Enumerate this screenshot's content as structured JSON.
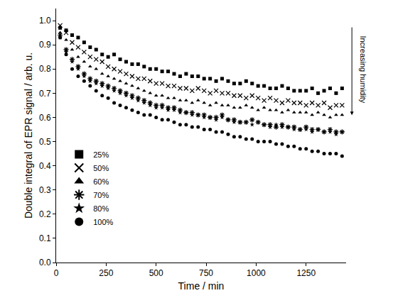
{
  "chart_data": {
    "type": "scatter",
    "x_label": "Time / min",
    "y_label": "Double integral of EPR signal / arb. u.",
    "annotation": "Increasing humidity",
    "xlim": [
      0,
      1450
    ],
    "xticks": [
      0,
      250,
      500,
      750,
      1000,
      1250
    ],
    "ylim": [
      0,
      1.05
    ],
    "yticks": [
      {
        "value": 0,
        "label": "0.0"
      },
      0.1,
      0.2,
      0.3,
      0.4,
      0.5,
      0.6,
      0.7,
      0.8,
      0.9,
      {
        "value": 1,
        "label": "1.0"
      }
    ],
    "grid": false,
    "legend": "lower left",
    "x": [
      20,
      50,
      80,
      110,
      140,
      170,
      200,
      230,
      260,
      290,
      320,
      350,
      380,
      410,
      440,
      470,
      500,
      530,
      560,
      590,
      620,
      650,
      680,
      710,
      740,
      770,
      800,
      830,
      860,
      890,
      920,
      950,
      980,
      1010,
      1040,
      1070,
      1100,
      1130,
      1160,
      1190,
      1220,
      1250,
      1280,
      1310,
      1340,
      1370,
      1400,
      1430
    ],
    "series": [
      {
        "name": "25%",
        "color": "#000000",
        "marker": "square",
        "values": [
          0.97,
          0.96,
          0.94,
          0.93,
          0.91,
          0.89,
          0.88,
          0.86,
          0.85,
          0.86,
          0.84,
          0.83,
          0.82,
          0.82,
          0.81,
          0.8,
          0.8,
          0.79,
          0.79,
          0.78,
          0.77,
          0.78,
          0.77,
          0.77,
          0.76,
          0.76,
          0.75,
          0.76,
          0.75,
          0.74,
          0.74,
          0.75,
          0.74,
          0.73,
          0.73,
          0.72,
          0.72,
          0.73,
          0.72,
          0.71,
          0.71,
          0.71,
          0.72,
          0.7,
          0.71,
          0.72,
          0.7,
          0.72
        ]
      },
      {
        "name": "50%",
        "color": "#000000",
        "marker": "x-thin-open",
        "values": [
          0.98,
          0.95,
          0.91,
          0.89,
          0.87,
          0.85,
          0.84,
          0.83,
          0.81,
          0.8,
          0.79,
          0.78,
          0.77,
          0.76,
          0.76,
          0.75,
          0.74,
          0.74,
          0.73,
          0.73,
          0.72,
          0.72,
          0.71,
          0.72,
          0.71,
          0.7,
          0.71,
          0.7,
          0.7,
          0.69,
          0.69,
          0.68,
          0.69,
          0.68,
          0.67,
          0.68,
          0.67,
          0.66,
          0.67,
          0.66,
          0.66,
          0.65,
          0.66,
          0.65,
          0.66,
          0.64,
          0.65,
          0.65
        ]
      },
      {
        "name": "60%",
        "color": "#000000",
        "marker": "triangle-up",
        "values": [
          0.95,
          0.92,
          0.88,
          0.85,
          0.83,
          0.81,
          0.8,
          0.78,
          0.77,
          0.76,
          0.75,
          0.74,
          0.73,
          0.72,
          0.71,
          0.7,
          0.69,
          0.69,
          0.68,
          0.68,
          0.67,
          0.67,
          0.66,
          0.67,
          0.66,
          0.65,
          0.66,
          0.65,
          0.65,
          0.64,
          0.64,
          0.65,
          0.64,
          0.63,
          0.64,
          0.63,
          0.63,
          0.62,
          0.63,
          0.62,
          0.62,
          0.62,
          0.61,
          0.62,
          0.61,
          0.6,
          0.61,
          0.61
        ]
      },
      {
        "name": "70%",
        "color": "#000000",
        "marker": "asterisk-open",
        "values": [
          0.94,
          0.88,
          0.84,
          0.81,
          0.78,
          0.76,
          0.75,
          0.74,
          0.73,
          0.72,
          0.71,
          0.7,
          0.69,
          0.68,
          0.67,
          0.66,
          0.65,
          0.65,
          0.64,
          0.64,
          0.63,
          0.62,
          0.62,
          0.61,
          0.61,
          0.6,
          0.6,
          0.61,
          0.59,
          0.59,
          0.58,
          0.58,
          0.59,
          0.58,
          0.57,
          0.57,
          0.56,
          0.57,
          0.56,
          0.56,
          0.55,
          0.56,
          0.55,
          0.55,
          0.54,
          0.55,
          0.54,
          0.54
        ]
      },
      {
        "name": "80%",
        "color": "#000000",
        "marker": "star",
        "values": [
          0.93,
          0.87,
          0.83,
          0.8,
          0.77,
          0.75,
          0.74,
          0.73,
          0.72,
          0.71,
          0.7,
          0.69,
          0.68,
          0.67,
          0.66,
          0.65,
          0.64,
          0.64,
          0.63,
          0.63,
          0.62,
          0.62,
          0.61,
          0.61,
          0.6,
          0.6,
          0.59,
          0.6,
          0.59,
          0.58,
          0.58,
          0.58,
          0.57,
          0.58,
          0.57,
          0.56,
          0.57,
          0.56,
          0.56,
          0.55,
          0.55,
          0.55,
          0.54,
          0.55,
          0.54,
          0.54,
          0.53,
          0.54
        ]
      },
      {
        "name": "100%",
        "color": "#000000",
        "marker": "circle",
        "values": [
          0.93,
          0.86,
          0.8,
          0.77,
          0.75,
          0.73,
          0.71,
          0.69,
          0.68,
          0.66,
          0.65,
          0.64,
          0.63,
          0.62,
          0.61,
          0.61,
          0.6,
          0.59,
          0.59,
          0.58,
          0.57,
          0.57,
          0.56,
          0.56,
          0.55,
          0.55,
          0.54,
          0.54,
          0.53,
          0.52,
          0.52,
          0.51,
          0.51,
          0.5,
          0.5,
          0.5,
          0.49,
          0.49,
          0.48,
          0.48,
          0.47,
          0.47,
          0.46,
          0.46,
          0.45,
          0.45,
          0.45,
          0.44
        ]
      }
    ]
  }
}
